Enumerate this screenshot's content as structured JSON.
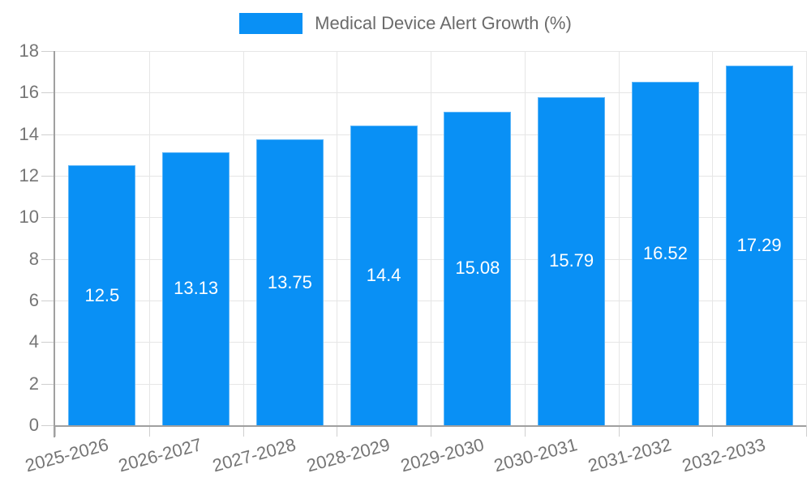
{
  "legend": {
    "label": "Medical Device Alert Growth (%)"
  },
  "chart_data": {
    "type": "bar",
    "title": "Medical Device Alert Growth (%)",
    "series_name": "Medical Device Alert Growth (%)",
    "categories": [
      "2025-2026",
      "2026-2027",
      "2027-2028",
      "2028-2029",
      "2029-2030",
      "2030-2031",
      "2031-2032",
      "2032-2033"
    ],
    "values": [
      12.5,
      13.13,
      13.75,
      14.4,
      15.08,
      15.79,
      16.52,
      17.29
    ],
    "value_labels": [
      "12.5",
      "13.13",
      "13.75",
      "14.4",
      "15.08",
      "15.79",
      "16.52",
      "17.29"
    ],
    "xlabel": "",
    "ylabel": "",
    "ylim": [
      0,
      18
    ],
    "yticks": [
      0,
      2,
      4,
      6,
      8,
      10,
      12,
      14,
      16,
      18
    ],
    "grid": true,
    "legend_position": "top",
    "x_label_rotation_deg": -15
  },
  "colors": {
    "bar": "#0990f5",
    "grid": "#e6e6e6",
    "axis": "#a0a0a0",
    "tick": "#cfcfcf",
    "axis_text": "#757575",
    "legend_text": "#6b6b6b",
    "value_label_text": "#ffffff",
    "background": "#ffffff"
  }
}
